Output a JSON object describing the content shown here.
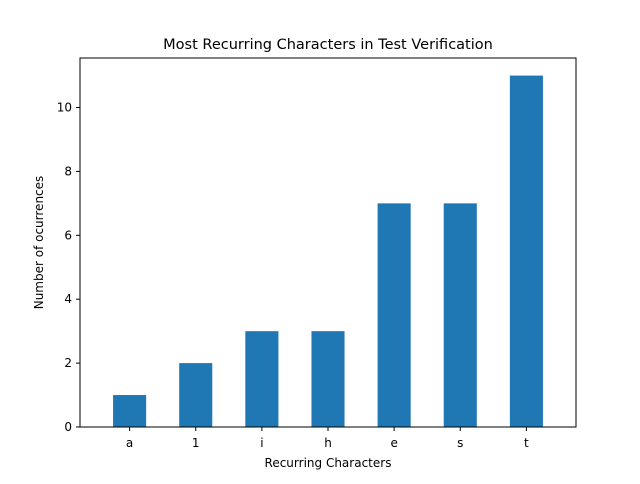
{
  "chart_data": {
    "type": "bar",
    "title": "Most Recurring Characters in Test Verification",
    "xlabel": "Recurring Characters",
    "ylabel": "Number of ocurrences",
    "categories": [
      "a",
      "1",
      "i",
      "h",
      "e",
      "s",
      "t"
    ],
    "values": [
      1,
      2,
      3,
      3,
      7,
      7,
      11
    ],
    "ylim": [
      0,
      11.55
    ],
    "yticks": [
      0,
      2,
      4,
      6,
      8,
      10
    ],
    "grid": false,
    "bar_color": "#1f77b4"
  }
}
